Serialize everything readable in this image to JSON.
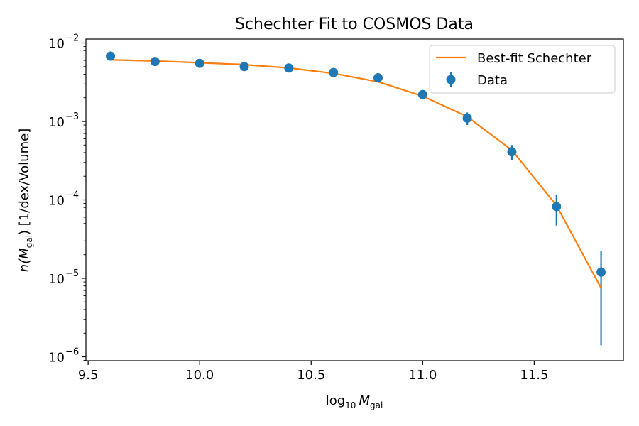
{
  "chart_data": {
    "type": "scatter",
    "title": "Schechter Fit to COSMOS Data",
    "xlabel": {
      "base": "log",
      "sub1": "10",
      "var": "M",
      "sub2": "gal"
    },
    "ylabel": {
      "pre": "n(",
      "var": "M",
      "sub": "gal",
      "post": ") [1/dex/Volume]"
    },
    "xlim": [
      9.49,
      11.9
    ],
    "ylim_log10": [
      -6.05,
      -1.95
    ],
    "y_scale": "log",
    "grid": false,
    "legend_position": "top-right",
    "x_ticks": [
      {
        "value": 9.5,
        "label": "9.5"
      },
      {
        "value": 10.0,
        "label": "10.0"
      },
      {
        "value": 10.5,
        "label": "10.5"
      },
      {
        "value": 11.0,
        "label": "11.0"
      },
      {
        "value": 11.5,
        "label": "11.5"
      }
    ],
    "y_ticks": [
      {
        "exp": -2,
        "label": "10",
        "sup": "−2"
      },
      {
        "exp": -3,
        "label": "10",
        "sup": "−3"
      },
      {
        "exp": -4,
        "label": "10",
        "sup": "−4"
      },
      {
        "exp": -5,
        "label": "10",
        "sup": "−5"
      },
      {
        "exp": -6,
        "label": "10",
        "sup": "−6"
      }
    ],
    "series": [
      {
        "name": "Data",
        "kind": "errorbar",
        "color": "#1f77b4",
        "points": [
          {
            "x": 9.6,
            "y": 0.0068,
            "ylo": 0.0063,
            "yhi": 0.0073
          },
          {
            "x": 9.8,
            "y": 0.0058,
            "ylo": 0.0054,
            "yhi": 0.0062
          },
          {
            "x": 10.0,
            "y": 0.0055,
            "ylo": 0.0051,
            "yhi": 0.0059
          },
          {
            "x": 10.2,
            "y": 0.005,
            "ylo": 0.0046,
            "yhi": 0.0054
          },
          {
            "x": 10.4,
            "y": 0.0048,
            "ylo": 0.0044,
            "yhi": 0.0052
          },
          {
            "x": 10.6,
            "y": 0.0042,
            "ylo": 0.0038,
            "yhi": 0.0046
          },
          {
            "x": 10.8,
            "y": 0.0036,
            "ylo": 0.0032,
            "yhi": 0.004
          },
          {
            "x": 11.0,
            "y": 0.0022,
            "ylo": 0.0019,
            "yhi": 0.0025
          },
          {
            "x": 11.2,
            "y": 0.0011,
            "ylo": 0.0009,
            "yhi": 0.0013
          },
          {
            "x": 11.4,
            "y": 0.00041,
            "ylo": 0.00032,
            "yhi": 0.0005
          },
          {
            "x": 11.6,
            "y": 8.2e-05,
            "ylo": 4.7e-05,
            "yhi": 0.000117
          },
          {
            "x": 11.8,
            "y": 1.2e-05,
            "ylo": 1.4e-06,
            "yhi": 2.25e-05
          }
        ]
      },
      {
        "name": "Best-fit Schechter",
        "kind": "line",
        "color": "#ff7f0e",
        "points": [
          {
            "x": 9.6,
            "y": 0.0061
          },
          {
            "x": 9.8,
            "y": 0.0059
          },
          {
            "x": 10.0,
            "y": 0.0056
          },
          {
            "x": 10.2,
            "y": 0.0053
          },
          {
            "x": 10.4,
            "y": 0.0048
          },
          {
            "x": 10.6,
            "y": 0.0041
          },
          {
            "x": 10.8,
            "y": 0.0032
          },
          {
            "x": 11.0,
            "y": 0.0021
          },
          {
            "x": 11.2,
            "y": 0.00115
          },
          {
            "x": 11.4,
            "y": 0.00043
          },
          {
            "x": 11.6,
            "y": 8.5e-05
          },
          {
            "x": 11.8,
            "y": 7.5e-06
          }
        ]
      }
    ],
    "legend": [
      {
        "name": "Best-fit Schechter",
        "kind": "line",
        "color": "#ff7f0e"
      },
      {
        "name": "Data",
        "kind": "errorbar",
        "color": "#1f77b4"
      }
    ]
  }
}
